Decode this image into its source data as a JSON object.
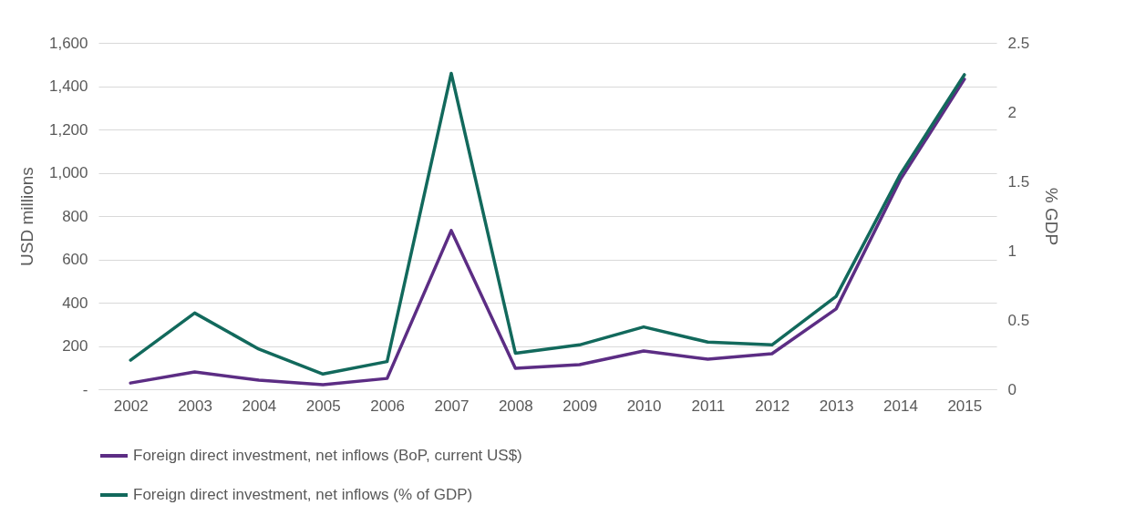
{
  "chart_data": {
    "type": "line",
    "ylabel": "USD millions",
    "y2label": "% GDP",
    "categories": [
      "2002",
      "2003",
      "2004",
      "2005",
      "2006",
      "2007",
      "2008",
      "2009",
      "2010",
      "2011",
      "2012",
      "2013",
      "2014",
      "2015"
    ],
    "series": [
      {
        "name": "Foreign direct investment, net inflows (BoP, current US$)",
        "color": "#5c2d84",
        "values": [
          29,
          80,
          42,
          21,
          50,
          733,
          97,
          114,
          177,
          139,
          164,
          371,
          968,
          1432
        ]
      },
      {
        "name": "Foreign direct investment, net inflows (% of GDP)",
        "color": "#12695c",
        "axis": "y2",
        "values": [
          0.21,
          0.55,
          0.29,
          0.11,
          0.2,
          2.28,
          0.26,
          0.32,
          0.45,
          0.34,
          0.32,
          0.67,
          1.55,
          2.27
        ]
      }
    ],
    "ylim": [
      0,
      1600
    ],
    "yticks": [
      {
        "value": 0,
        "label": "-"
      },
      200,
      400,
      600,
      800,
      {
        "value": 1000,
        "label": "1,000"
      },
      {
        "value": 1200,
        "label": "1,200"
      },
      {
        "value": 1400,
        "label": "1,400"
      },
      {
        "value": 1600,
        "label": "1,600"
      }
    ],
    "y2lim": [
      0,
      2.5
    ],
    "y2ticks": [
      0,
      0.5,
      1,
      1.5,
      2,
      2.5
    ],
    "grid": "y",
    "legend": "bottom",
    "marker": "none",
    "line_style": "solid"
  }
}
